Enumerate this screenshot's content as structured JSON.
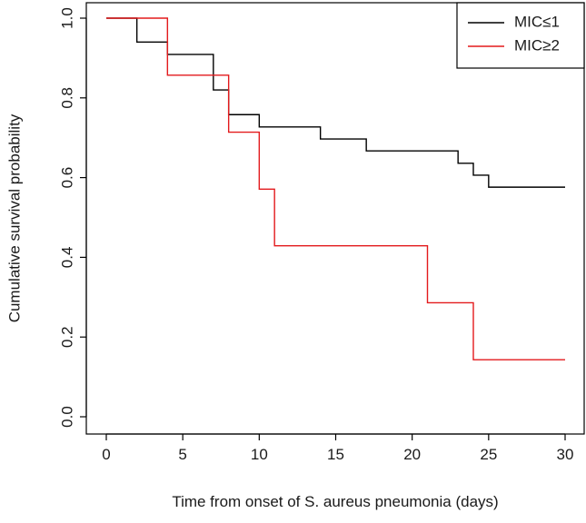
{
  "chart_data": {
    "type": "line",
    "subtype": "kaplan-meier-step",
    "title": "",
    "xlabel": "Time from onset of S. aureus pneumonia (days)",
    "ylabel": "Cumulative survival probability",
    "xlim": [
      0,
      30
    ],
    "ylim": [
      0,
      1
    ],
    "x_ticks": [
      0,
      5,
      10,
      15,
      20,
      25,
      30
    ],
    "x_tick_labels": [
      "0",
      "5",
      "10",
      "15",
      "20",
      "25",
      "30"
    ],
    "y_ticks": [
      0,
      0.2,
      0.4,
      0.6,
      0.8,
      1.0
    ],
    "y_tick_labels": [
      "0.0",
      "0.2",
      "0.4",
      "0.6",
      "0.8",
      "1.0"
    ],
    "grid": false,
    "legend_position": "top-right",
    "series": [
      {
        "name": "MIC≤1",
        "color": "#000000",
        "steps": [
          [
            0,
            1.0
          ],
          [
            2,
            0.94
          ],
          [
            4,
            0.909
          ],
          [
            7,
            0.82
          ],
          [
            8,
            0.758
          ],
          [
            10,
            0.727
          ],
          [
            14,
            0.697
          ],
          [
            17,
            0.667
          ],
          [
            23,
            0.636
          ],
          [
            24,
            0.606
          ],
          [
            25,
            0.576
          ],
          [
            30,
            0.576
          ]
        ]
      },
      {
        "name": "MIC≥2",
        "color": "#e31a1c",
        "steps": [
          [
            0,
            1.0
          ],
          [
            4,
            0.857
          ],
          [
            8,
            0.714
          ],
          [
            10,
            0.571
          ],
          [
            11,
            0.429
          ],
          [
            21,
            0.286
          ],
          [
            24,
            0.143
          ],
          [
            30,
            0.143
          ]
        ]
      }
    ]
  }
}
